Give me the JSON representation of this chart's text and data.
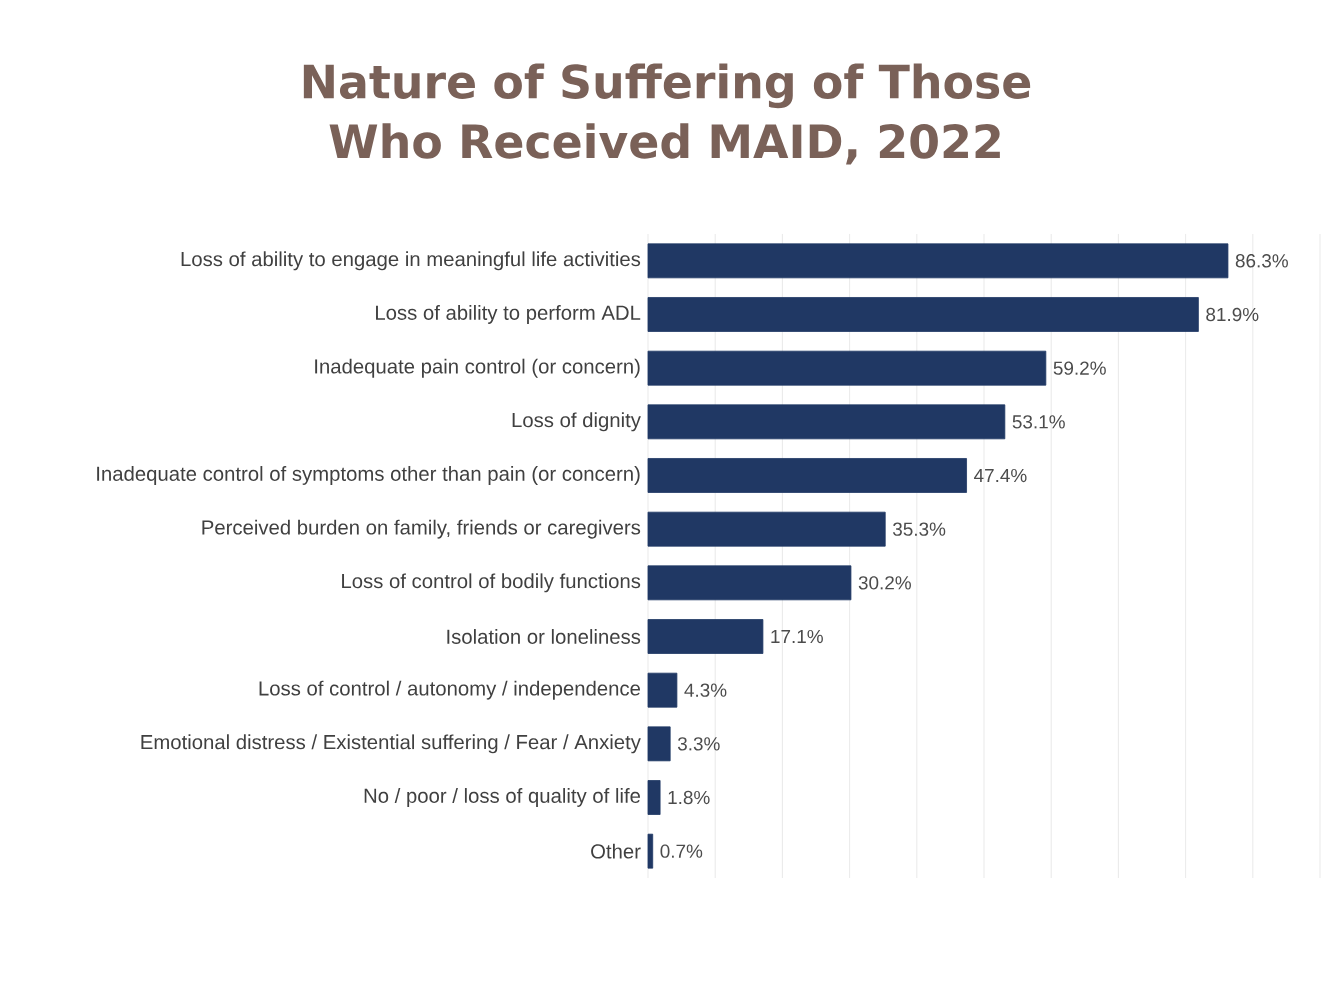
{
  "chart_data": {
    "type": "bar",
    "orientation": "horizontal",
    "title": "Nature of Suffering of Those Who Received MAID, 2022",
    "categories": [
      "Loss of ability to engage in meaningful life activities",
      "Loss of ability to perform ADL",
      "Inadequate pain control (or concern)",
      "Loss of dignity",
      "Inadequate control of symptoms other than pain (or concern)",
      "Perceived burden on family, friends or caregivers",
      "Loss of control of bodily functions",
      "Isolation or loneliness",
      "Loss of control / autonomy / independence",
      "Emotional distress / Existential suffering / Fear / Anxiety",
      "No / poor / loss of quality of life",
      "Other"
    ],
    "values": [
      86.3,
      81.9,
      59.2,
      53.1,
      47.4,
      35.3,
      30.2,
      17.1,
      4.3,
      3.3,
      1.8,
      0.7
    ],
    "value_labels": [
      "86.3%",
      "81.9%",
      "59.2%",
      "53.1%",
      "47.4%",
      "35.3%",
      "30.2%",
      "17.1%",
      "4.3%",
      "3.3%",
      "1.8%",
      "0.7%"
    ],
    "color": "#203864",
    "xlim": [
      0,
      100
    ],
    "xticks": [
      {
        "value": 0,
        "label": null
      },
      {
        "value": 10,
        "label": null
      },
      {
        "value": 20,
        "label": null
      },
      {
        "value": 30,
        "label": null
      },
      {
        "value": 40,
        "label": null
      },
      {
        "value": 50,
        "label": null
      },
      {
        "value": 60,
        "label": null
      },
      {
        "value": 70,
        "label": null
      },
      {
        "value": 80,
        "label": null
      },
      {
        "value": 90,
        "label": null
      },
      {
        "value": 100,
        "label": null
      }
    ],
    "grid": "x",
    "tick_labels": "y"
  }
}
